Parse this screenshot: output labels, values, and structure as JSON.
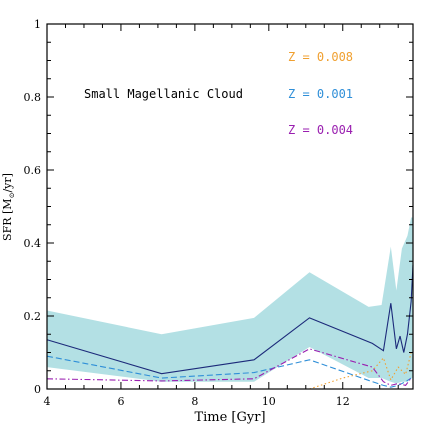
{
  "chart_data": {
    "type": "line",
    "title": "",
    "xlabel": "Time [Gyr]",
    "ylabel_main": "SFR [M",
    "ylabel_sub": "⊙",
    "ylabel_tail": "/yr]",
    "xlim": [
      4,
      13.9
    ],
    "ylim": [
      0,
      1
    ],
    "x_ticks": [
      4,
      6,
      8,
      10,
      12
    ],
    "x_tick_labels": [
      "4",
      "6",
      "8",
      "10",
      "12"
    ],
    "y_ticks": [
      0,
      0.2,
      0.4,
      0.6,
      0.8,
      1
    ],
    "y_tick_labels": [
      "0",
      "0.2",
      "0.4",
      "0.6",
      "0.8",
      "1"
    ],
    "annotation": "Small Magellanic Cloud",
    "legend_position": "top-right",
    "colors": {
      "band": "#b3e0e4",
      "total": "#1c2a7a",
      "z008": "#f0a030",
      "z001": "#2f8fd8",
      "z004": "#9a1fb0",
      "frame": "#000000"
    },
    "band": {
      "x": [
        4.0,
        7.1,
        9.6,
        11.1,
        12.7,
        13.05,
        13.3,
        13.45,
        13.6,
        13.75,
        13.85,
        13.9
      ],
      "upper": [
        0.215,
        0.15,
        0.195,
        0.32,
        0.225,
        0.23,
        0.39,
        0.27,
        0.385,
        0.42,
        0.47,
        0.47
      ],
      "lower": [
        0.06,
        0.02,
        0.02,
        0.115,
        0.03,
        0.03,
        0.02,
        0.015,
        0.02,
        0.02,
        0.03,
        0.03
      ]
    },
    "series": [
      {
        "key": "total",
        "style": "solid",
        "x": [
          4.0,
          7.1,
          9.6,
          11.1,
          12.8,
          13.1,
          13.3,
          13.45,
          13.55,
          13.65,
          13.75,
          13.85,
          13.9
        ],
        "y": [
          0.135,
          0.042,
          0.08,
          0.195,
          0.125,
          0.105,
          0.235,
          0.11,
          0.145,
          0.1,
          0.15,
          0.24,
          0.34
        ]
      },
      {
        "key": "z001",
        "style": "dashed",
        "x": [
          4.0,
          7.1,
          9.6,
          11.1,
          12.8,
          13.1,
          13.3,
          13.5,
          13.7,
          13.85
        ],
        "y": [
          0.09,
          0.03,
          0.045,
          0.08,
          0.02,
          0.01,
          0.005,
          0.01,
          0.02,
          0.03
        ]
      },
      {
        "key": "z004",
        "style": "dashdot",
        "x": [
          4.0,
          7.1,
          9.6,
          11.1,
          12.8,
          13.1,
          13.3,
          13.5,
          13.7,
          13.85
        ],
        "y": [
          0.028,
          0.022,
          0.028,
          0.11,
          0.06,
          0.02,
          0.01,
          0.015,
          0.01,
          0.03
        ]
      },
      {
        "key": "z008",
        "style": "dotted",
        "x": [
          11.1,
          12.0,
          12.8,
          13.1,
          13.3,
          13.5,
          13.7,
          13.85
        ],
        "y": [
          0.0,
          0.03,
          0.05,
          0.085,
          0.025,
          0.06,
          0.04,
          0.1
        ]
      }
    ],
    "legend": [
      {
        "key": "z008",
        "label": "Z = 0.008"
      },
      {
        "key": "z001",
        "label": "Z = 0.001"
      },
      {
        "key": "z004",
        "label": "Z = 0.004"
      }
    ]
  }
}
